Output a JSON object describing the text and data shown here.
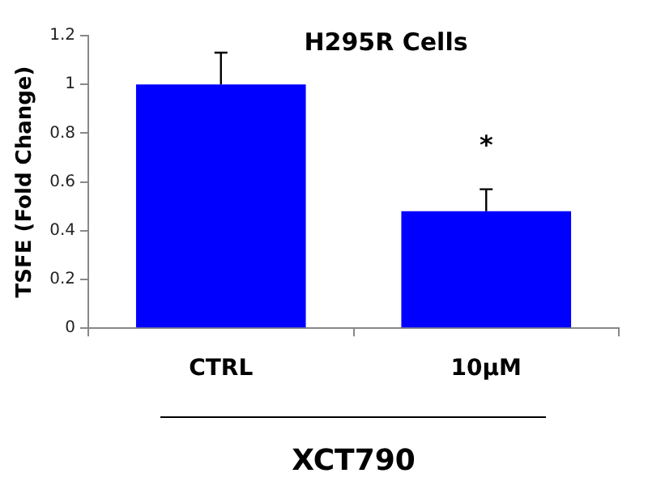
{
  "chart_data": {
    "type": "bar",
    "title": "H295R Cells",
    "xlabel": "XCT790",
    "ylabel": "TSFE (Fold Change)",
    "categories": [
      "CTRL",
      "10μM"
    ],
    "values": [
      1.0,
      0.48
    ],
    "errors": [
      [
        1.0,
        1.13
      ],
      [
        0.48,
        0.57
      ]
    ],
    "color": "#0000ff",
    "ylim": [
      0,
      1.2
    ],
    "yticks": [
      0,
      0.2,
      0.4,
      0.6,
      0.8,
      1,
      1.2
    ],
    "grid": false,
    "legend": false,
    "annotations": [
      "*"
    ]
  }
}
